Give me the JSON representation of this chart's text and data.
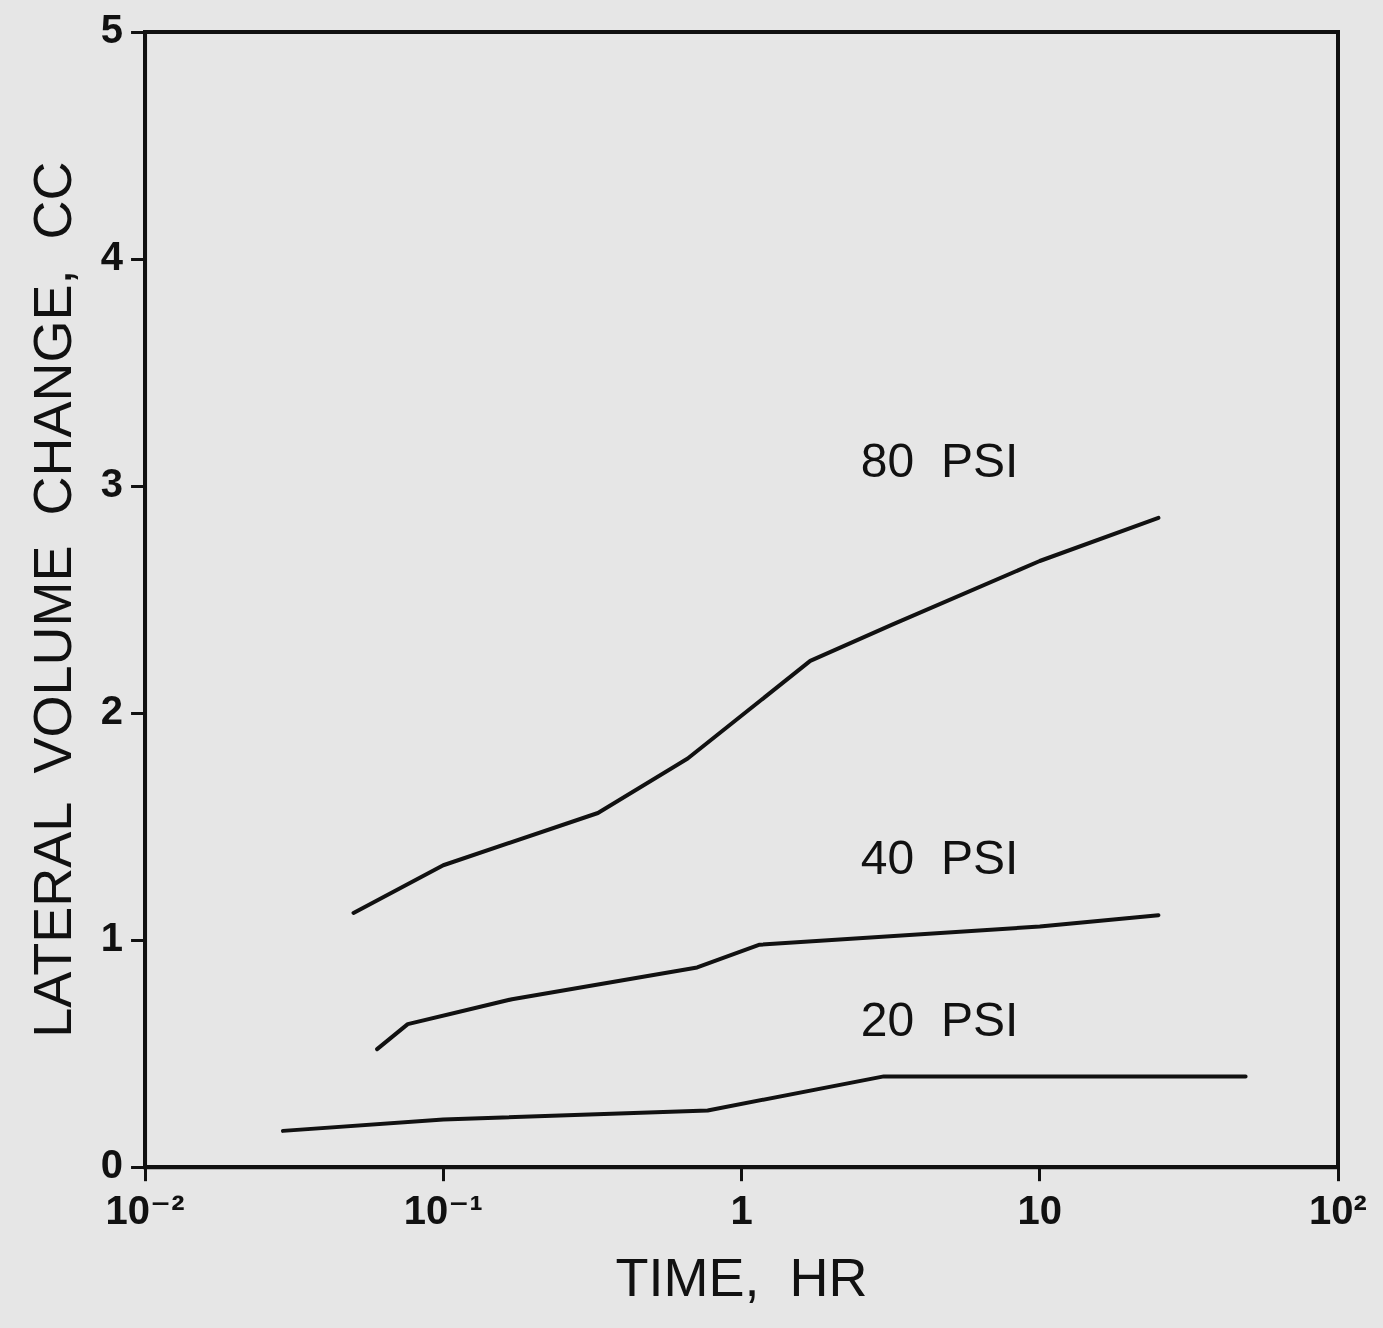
{
  "chart_data": {
    "type": "line",
    "xlabel": "TIME,  HR",
    "ylabel": "LATERAL  VOLUME  CHANGE,  CC",
    "log": "x",
    "grid": false,
    "legend": false,
    "marker": "none",
    "line_style": "solid",
    "xlim": [
      0.01,
      100
    ],
    "xticks": [
      {
        "value": 0.01,
        "label": "10⁻²"
      },
      {
        "value": 0.1,
        "label": "10⁻¹"
      },
      1,
      10,
      {
        "value": 100,
        "label": "10²"
      }
    ],
    "ylim": [
      0,
      5
    ],
    "yticks": [
      0,
      1,
      2,
      3,
      4,
      5
    ],
    "series": [
      {
        "name": "80  PSI",
        "color": "#111111",
        "x": [
          0.05,
          0.1,
          0.33,
          0.66,
          1.7,
          3.2,
          10,
          25
        ],
        "values": [
          1.12,
          1.33,
          1.56,
          1.8,
          2.23,
          2.39,
          2.67,
          2.86
        ]
      },
      {
        "name": "40  PSI",
        "color": "#111111",
        "x": [
          0.06,
          0.076,
          0.17,
          0.71,
          1.15,
          10,
          25
        ],
        "values": [
          0.52,
          0.63,
          0.74,
          0.88,
          0.98,
          1.06,
          1.11
        ]
      },
      {
        "name": "20  PSI",
        "color": "#111111",
        "x": [
          0.029,
          0.1,
          0.77,
          3,
          49
        ],
        "values": [
          0.16,
          0.21,
          0.25,
          0.4,
          0.4
        ]
      }
    ]
  }
}
